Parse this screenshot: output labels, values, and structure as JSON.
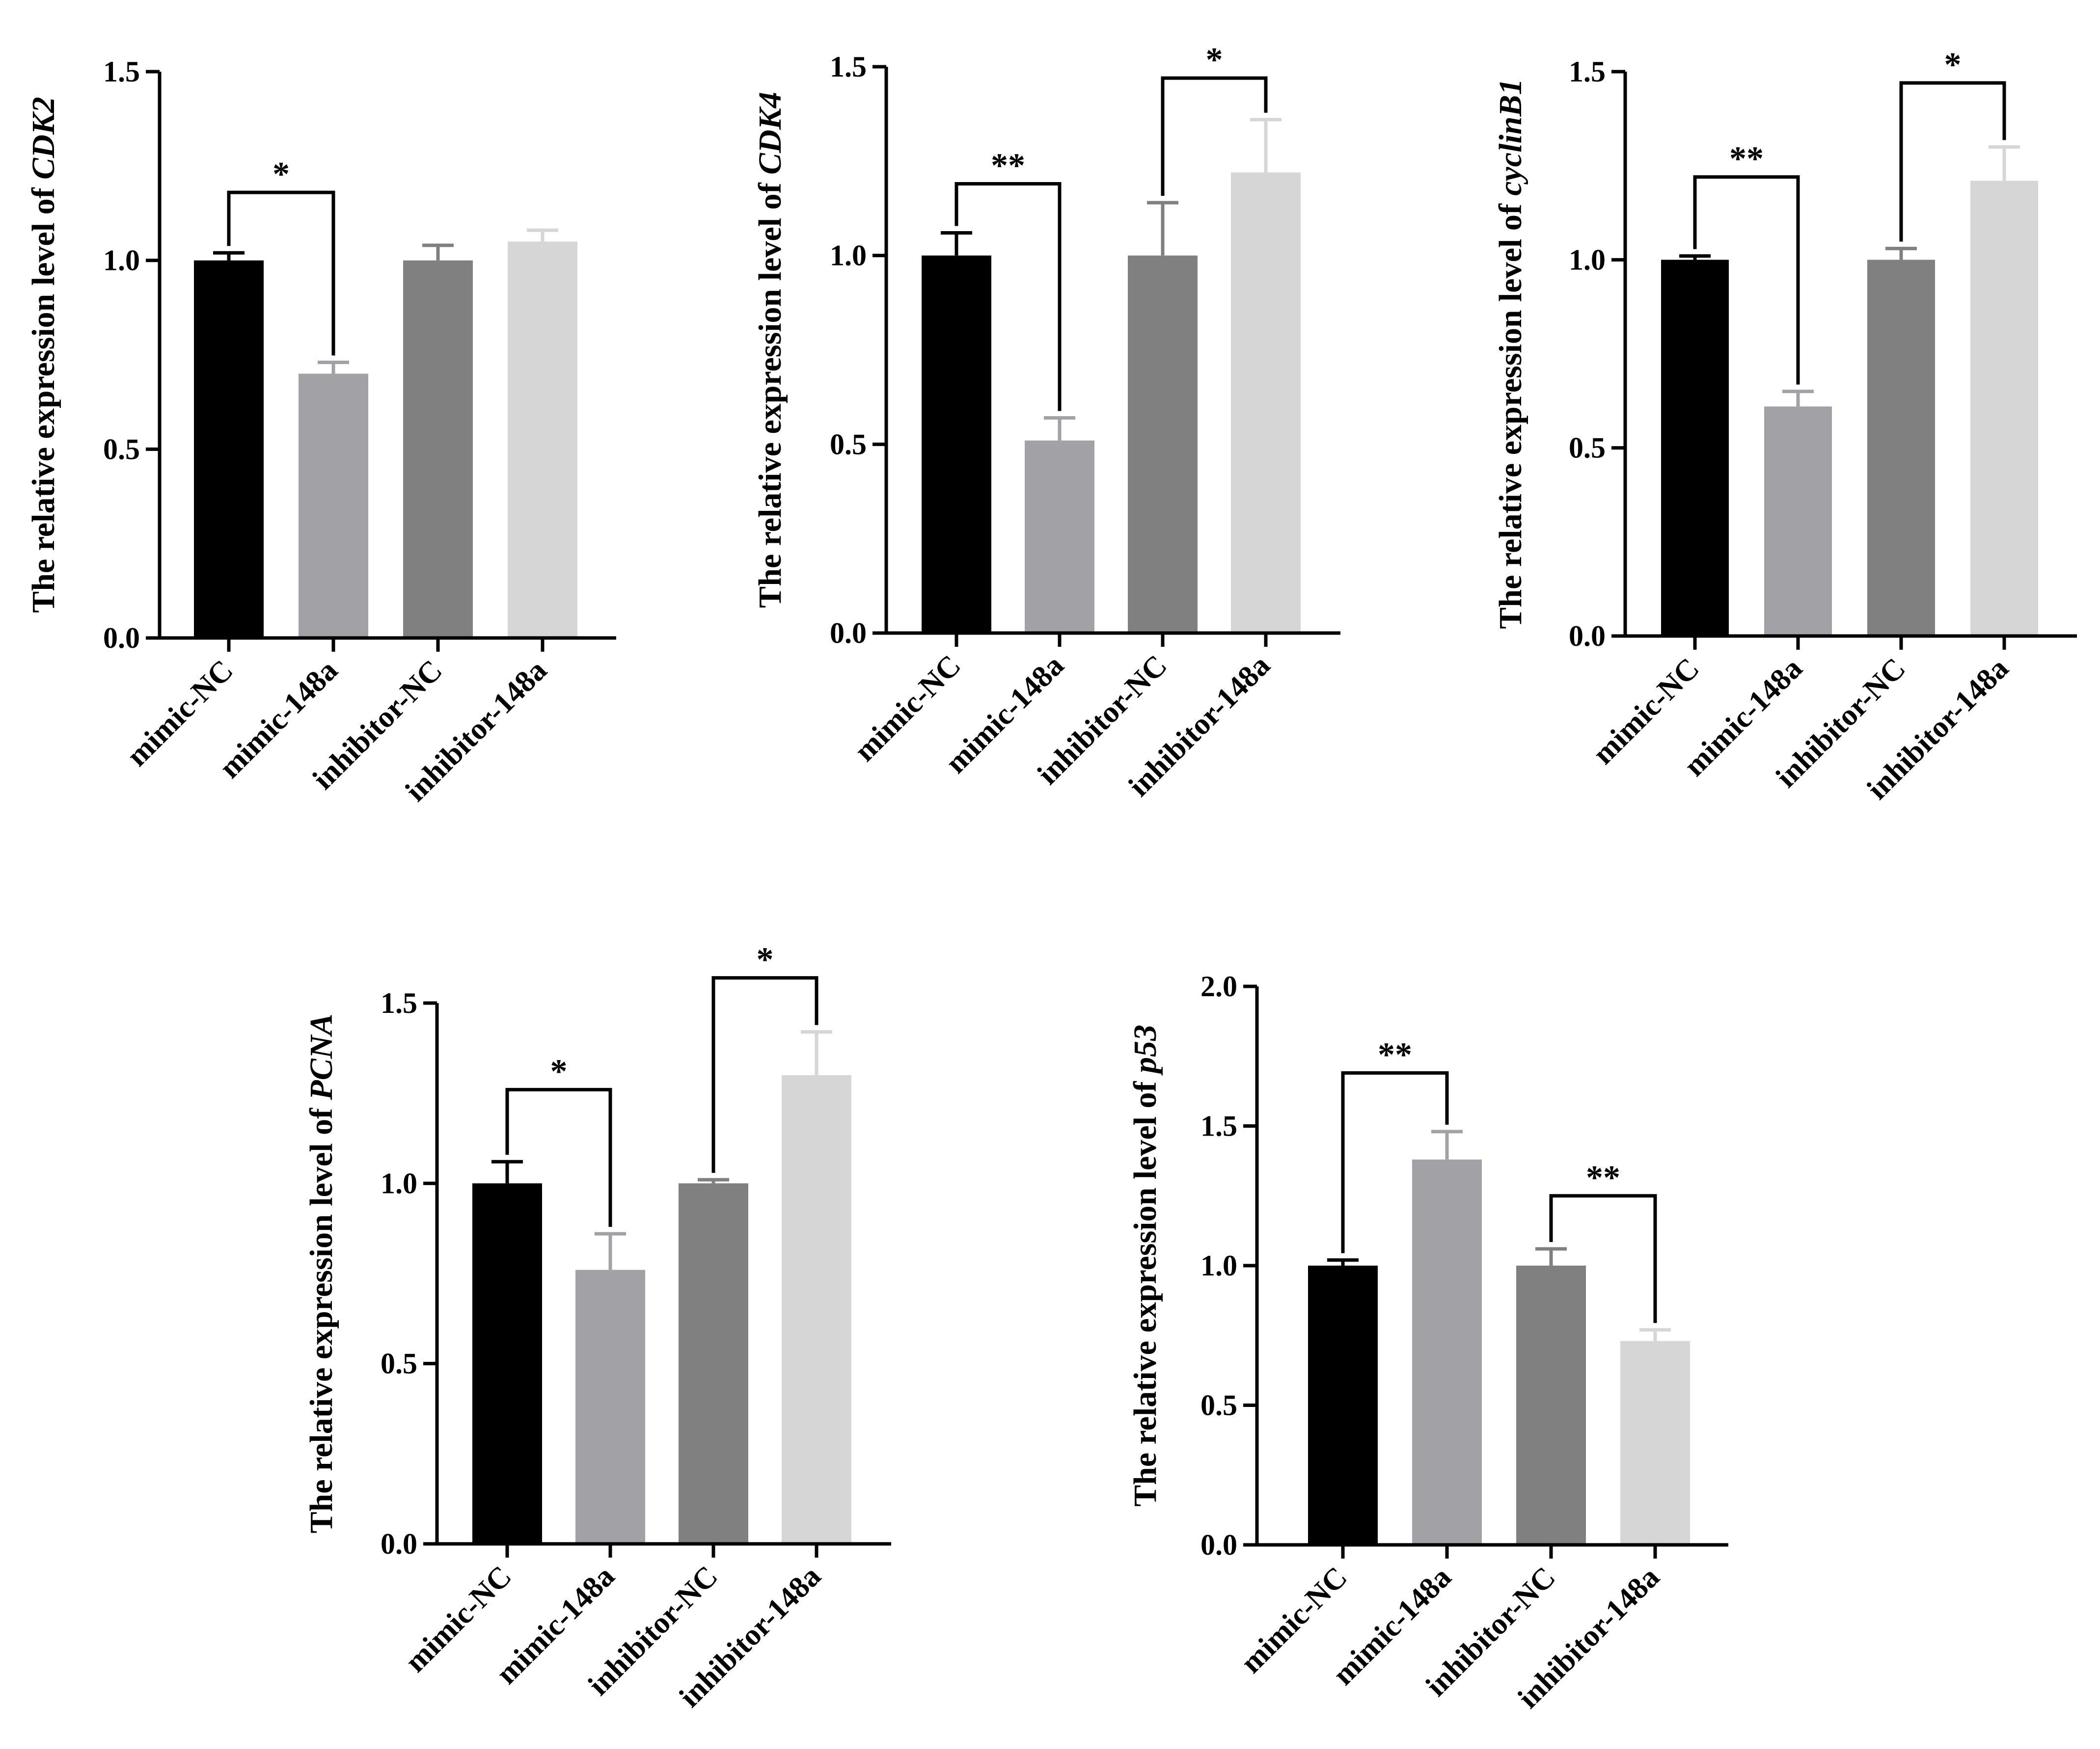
{
  "colors": {
    "mimic-NC": "#000000",
    "mimic-148a": "#a2a1a6",
    "inhibitor-NC": "#808080",
    "inhibitor-148a": "#d6d6d6"
  },
  "chart_data": [
    {
      "type": "bar",
      "gene": "CDK2",
      "ylabel_prefix": "The relative expression level of ",
      "categories": [
        "mimic-NC",
        "mimic-148a",
        "inhibitor-NC",
        "inhibitor-148a"
      ],
      "values": [
        1.0,
        0.7,
        1.0,
        1.05
      ],
      "errors": [
        0.02,
        0.03,
        0.04,
        0.03
      ],
      "ylim": [
        0,
        1.5
      ],
      "yticks": [
        "0.0",
        "0.5",
        "1.0",
        "1.5"
      ],
      "significance": [
        {
          "from": 0,
          "to": 1,
          "label": "*",
          "level": 1.18
        }
      ]
    },
    {
      "type": "bar",
      "gene": "CDK4",
      "ylabel_prefix": "The relative expression level of ",
      "categories": [
        "mimic-NC",
        "mimic-148a",
        "inhibitor-NC",
        "inhibitor-148a"
      ],
      "values": [
        1.0,
        0.51,
        1.0,
        1.22
      ],
      "errors": [
        0.06,
        0.06,
        0.14,
        0.14
      ],
      "ylim": [
        0,
        1.5
      ],
      "yticks": [
        "0.0",
        "0.5",
        "1.0",
        "1.5"
      ],
      "significance": [
        {
          "from": 0,
          "to": 1,
          "label": "**",
          "level": 1.19
        },
        {
          "from": 2,
          "to": 3,
          "label": "*",
          "level": 1.47
        }
      ]
    },
    {
      "type": "bar",
      "gene": "cyclinB1",
      "ylabel_prefix": "The relative expression level of ",
      "categories": [
        "mimic-NC",
        "mimic-148a",
        "inhibitor-NC",
        "inhibitor-148a"
      ],
      "values": [
        1.0,
        0.61,
        1.0,
        1.21
      ],
      "errors": [
        0.01,
        0.04,
        0.03,
        0.09
      ],
      "ylim": [
        0,
        1.5
      ],
      "yticks": [
        "0.0",
        "0.5",
        "1.0",
        "1.5"
      ],
      "significance": [
        {
          "from": 0,
          "to": 1,
          "label": "**",
          "level": 1.22
        },
        {
          "from": 2,
          "to": 3,
          "label": "*",
          "level": 1.47
        }
      ]
    },
    {
      "type": "bar",
      "gene": "PCNA",
      "ylabel_prefix": "The relative expression level of ",
      "categories": [
        "mimic-NC",
        "mimic-148a",
        "inhibitor-NC",
        "inhibitor-148a"
      ],
      "values": [
        1.0,
        0.76,
        1.0,
        1.3
      ],
      "errors": [
        0.06,
        0.1,
        0.01,
        0.12
      ],
      "ylim": [
        0,
        1.5
      ],
      "yticks": [
        "0.0",
        "0.5",
        "1.0",
        "1.5"
      ],
      "significance": [
        {
          "from": 0,
          "to": 1,
          "label": "*",
          "level": 1.26
        },
        {
          "from": 2,
          "to": 3,
          "label": "*",
          "level": 1.57
        }
      ]
    },
    {
      "type": "bar",
      "gene": "p53",
      "ylabel_prefix": "The relative expression level of ",
      "categories": [
        "mimic-NC",
        "mimic-148a",
        "inhibitor-NC",
        "inhibitor-148a"
      ],
      "values": [
        1.0,
        1.38,
        1.0,
        0.73
      ],
      "errors": [
        0.02,
        0.1,
        0.06,
        0.04
      ],
      "ylim": [
        0,
        2.0
      ],
      "yticks": [
        "0.0",
        "0.5",
        "1.0",
        "1.5",
        "2.0"
      ],
      "significance": [
        {
          "from": 0,
          "to": 1,
          "label": "**",
          "level": 1.69
        },
        {
          "from": 2,
          "to": 3,
          "label": "**",
          "level": 1.25
        }
      ]
    }
  ]
}
